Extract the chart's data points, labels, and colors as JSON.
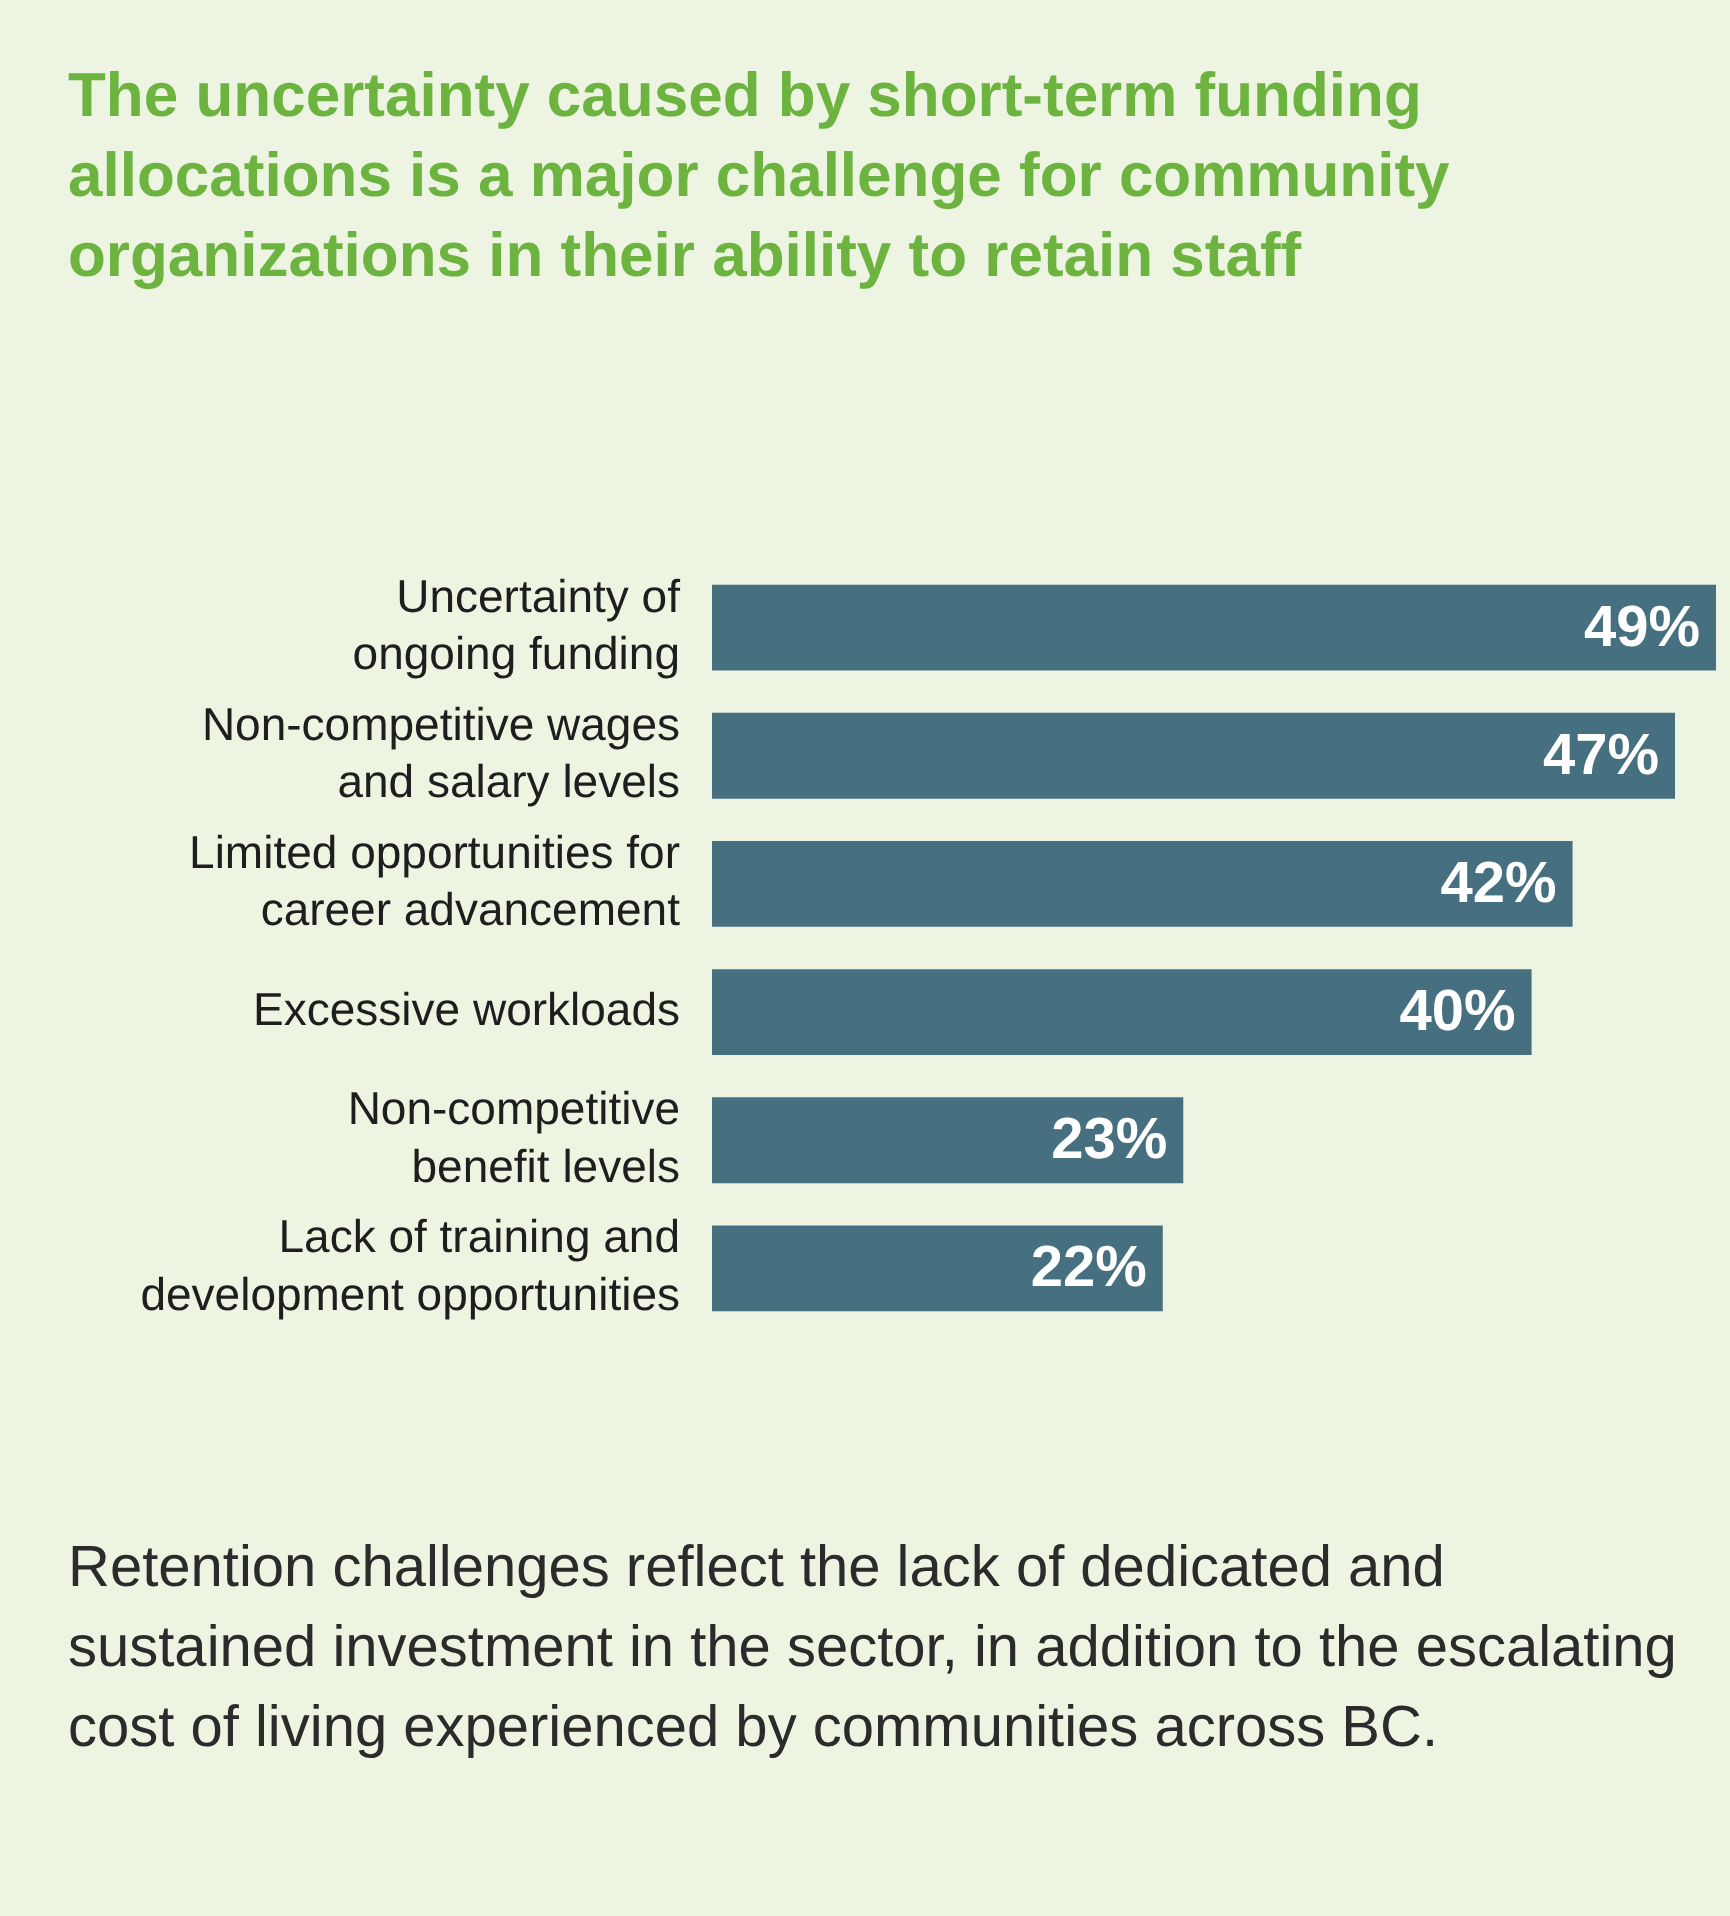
{
  "chart_data": {
    "type": "bar",
    "orientation": "horizontal",
    "title": "The uncertainty caused by short-term funding allocations is a major challenge for community organizations in their ability to retain staff",
    "categories": [
      "Uncertainty of\nongoing funding",
      "Non-competitive wages\nand salary levels",
      "Limited opportunities for\ncareer advancement",
      "Excessive workloads",
      "Non-competitive\nbenefit levels",
      "Lack of training and\ndevelopment opportunities"
    ],
    "values": [
      49,
      47,
      42,
      40,
      23,
      22
    ],
    "value_labels": [
      "49%",
      "47%",
      "42%",
      "40%",
      "23%",
      "22%"
    ],
    "color": "#46707f",
    "xlim": [
      0,
      49
    ],
    "tick_labels": "y",
    "grid": false,
    "legend": false,
    "annotations": [
      "Retention challenges reflect the lack of dedicated and sustained investment in the sector, in addition to the escalating cost of living experienced by communities across BC."
    ]
  }
}
